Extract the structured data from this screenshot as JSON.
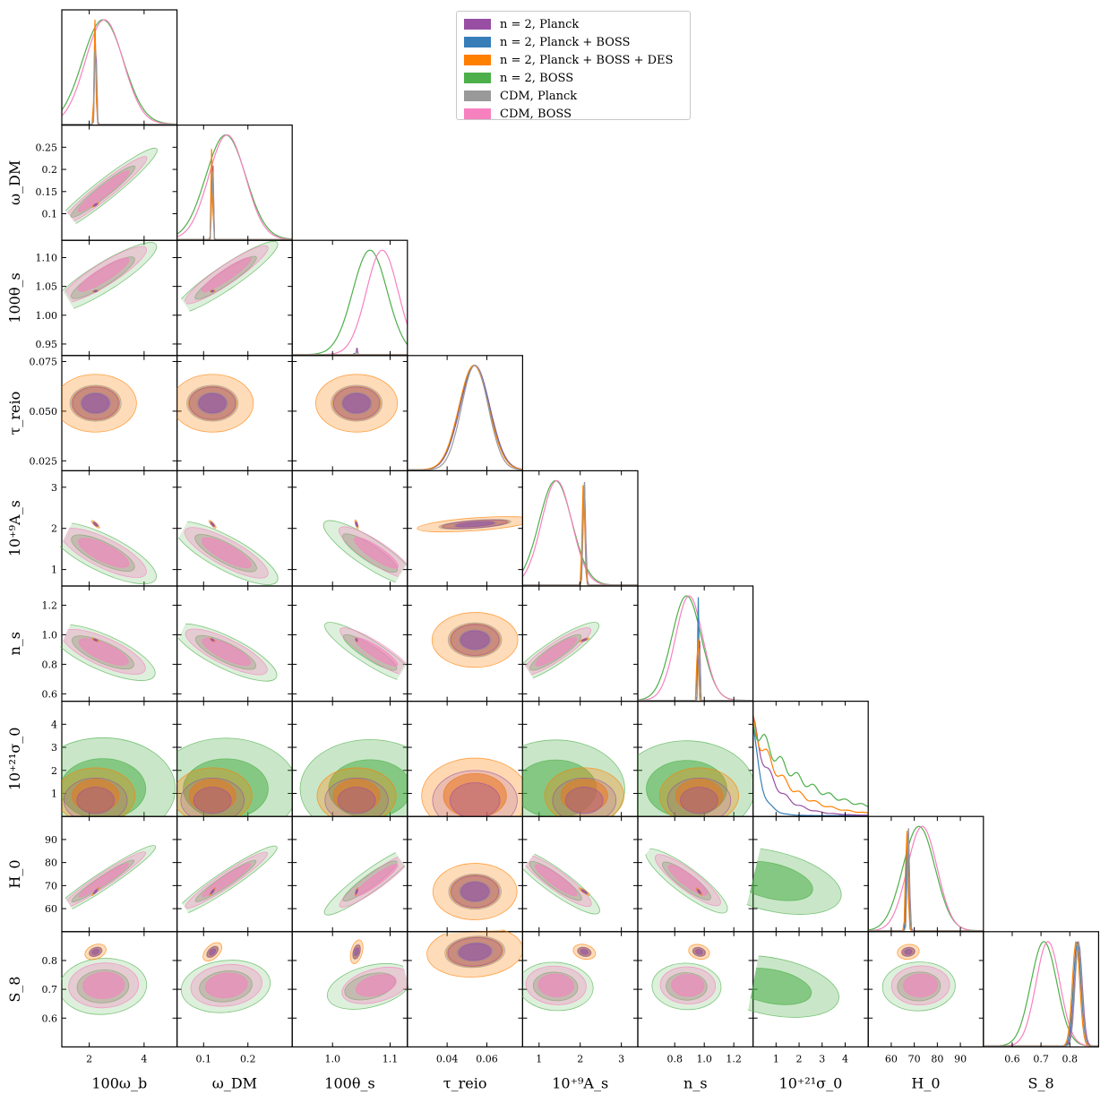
{
  "legend": [
    {
      "label": "n = 2, Planck",
      "color": "#984ea3"
    },
    {
      "label": "n = 2, Planck + BOSS",
      "color": "#377eb8"
    },
    {
      "label": "n = 2, Planck + BOSS + DES",
      "color": "#ff7f00"
    },
    {
      "label": "n = 2, BOSS",
      "color": "#4daf4a"
    },
    {
      "label": "CDM, Planck",
      "color": "#999999"
    },
    {
      "label": "CDM, BOSS",
      "color": "#f781bf"
    }
  ],
  "chart_data": {
    "type": "corner",
    "parameters": [
      {
        "name": "omega_b",
        "label": "100ω_b",
        "ylabel": "",
        "range": [
          1.0,
          5.2
        ],
        "ticks": [
          2,
          4
        ],
        "tick_labels": [
          "2",
          "4"
        ],
        "means": {
          "planck": 2.23,
          "boss": 2.5
        },
        "sigma": {
          "planck": 0.03,
          "boss": 0.75
        }
      },
      {
        "name": "omega_dm",
        "label": "ω_DM",
        "ylabel": "ω_DM",
        "range": [
          0.04,
          0.3
        ],
        "ticks": [
          0.1,
          0.15,
          0.2,
          0.25
        ],
        "tick_labels": [
          "0.1",
          "0.15",
          "0.2",
          "0.25"
        ],
        "xticks": [
          0.1,
          0.2
        ],
        "xtick_labels": [
          "0.1",
          "0.2"
        ],
        "means": {
          "planck": 0.12,
          "boss": 0.15
        },
        "sigma": {
          "planck": 0.0015,
          "boss": 0.045
        }
      },
      {
        "name": "theta_s",
        "label": "100θ_s",
        "ylabel": "100θ_s",
        "range": [
          0.93,
          1.13
        ],
        "ticks": [
          0.95,
          1.0,
          1.05,
          1.1
        ],
        "tick_labels": [
          "0.95",
          "1.00",
          "1.05",
          "1.10"
        ],
        "xticks": [
          1.0,
          1.1
        ],
        "xtick_labels": [
          "1.0",
          "1.1"
        ],
        "means": {
          "planck": 1.0418,
          "boss": 1.065
        },
        "sigma": {
          "planck": 0.0003,
          "boss": 0.03
        }
      },
      {
        "name": "tau_reio",
        "label": "τ_reio",
        "ylabel": "τ_reio",
        "range": [
          0.02,
          0.078
        ],
        "ticks": [
          0.025,
          0.05,
          0.075
        ],
        "tick_labels": [
          "0.025",
          "0.050",
          "0.075"
        ],
        "xticks": [
          0.04,
          0.06
        ],
        "xtick_labels": [
          "0.04",
          "0.06"
        ],
        "means": {
          "planck": 0.054,
          "boss": null
        },
        "sigma": {
          "planck": 0.0075,
          "boss": null
        }
      },
      {
        "name": "As",
        "label": "10⁺⁹A_s",
        "ylabel": "10⁺⁹A_s",
        "range": [
          0.6,
          3.4
        ],
        "ticks": [
          1,
          2,
          3
        ],
        "tick_labels": [
          "1",
          "2",
          "3"
        ],
        "means": {
          "planck": 2.1,
          "boss": 1.4
        },
        "sigma": {
          "planck": 0.03,
          "boss": 0.4
        }
      },
      {
        "name": "ns",
        "label": "n_s",
        "ylabel": "n_s",
        "range": [
          0.55,
          1.33
        ],
        "ticks": [
          0.6,
          0.8,
          1.0,
          1.2
        ],
        "tick_labels": [
          "0.6",
          "0.8",
          "1.0",
          "1.2"
        ],
        "xticks": [
          0.8,
          1.0,
          1.2
        ],
        "xtick_labels": [
          "0.8",
          "1.0",
          "1.2"
        ],
        "means": {
          "planck": 0.965,
          "boss": 0.88
        },
        "sigma": {
          "planck": 0.004,
          "boss": 0.1
        }
      },
      {
        "name": "sigma0",
        "label": "10⁺²¹σ_0",
        "ylabel": "10⁺²¹σ_0",
        "range": [
          0.0,
          5.0
        ],
        "ticks": [
          1,
          2,
          3,
          4
        ],
        "tick_labels": [
          "1",
          "2",
          "3",
          "4"
        ],
        "means": {
          "planck": null,
          "boss": null
        },
        "sigma": {
          "planck": null,
          "boss": null
        }
      },
      {
        "name": "H0",
        "label": "H_0",
        "ylabel": "H_0",
        "range": [
          50,
          100
        ],
        "ticks": [
          60,
          70,
          80,
          90
        ],
        "tick_labels": [
          "60",
          "70",
          "80",
          "90"
        ],
        "means": {
          "planck": 67.4,
          "boss": 72
        },
        "sigma": {
          "planck": 0.5,
          "boss": 7
        }
      },
      {
        "name": "S8",
        "label": "S_8",
        "ylabel": "S_8",
        "range": [
          0.5,
          0.9
        ],
        "ticks": [
          0.6,
          0.7,
          0.8
        ],
        "tick_labels": [
          "0.6",
          "0.7",
          "0.8"
        ],
        "means": {
          "planck": 0.83,
          "boss": 0.71
        },
        "sigma": {
          "planck": 0.013,
          "boss": 0.045
        }
      }
    ],
    "series_styles": {
      "n2_planck": "#984ea3",
      "n2_planck_boss": "#377eb8",
      "n2_planck_boss_des": "#ff7f00",
      "n2_boss": "#4daf4a",
      "cdm_planck": "#999999",
      "cdm_boss": "#f781bf"
    }
  }
}
